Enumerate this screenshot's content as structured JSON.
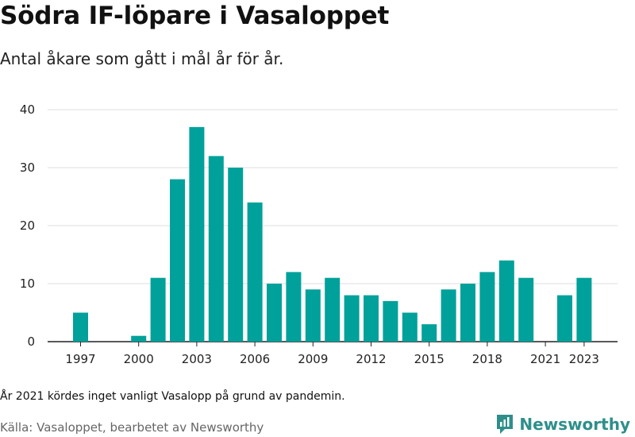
{
  "colors": {
    "bar": "#00a19a",
    "grid": "#dddddd",
    "axis": "#222222",
    "brand": "#2e8f8a"
  },
  "header": {
    "title": "Södra IF-löpare i Vasaloppet",
    "subtitle": "Antal åkare som gått i mål år för år."
  },
  "footer": {
    "note": "År 2021 kördes inget vanligt Vasalopp på grund av pandemin.",
    "source": "Källa: Vasaloppet, bearbetet av Newsworthy",
    "brand_name": "Newsworthy",
    "brand_icon": "newsworthy-logo-icon"
  },
  "chart_data": {
    "type": "bar",
    "title": "Södra IF-löpare i Vasaloppet",
    "subtitle": "Antal åkare som gått i mål år för år.",
    "xlabel": "",
    "ylabel": "",
    "categories": [
      "1997",
      "1998",
      "1999",
      "2000",
      "2001",
      "2002",
      "2003",
      "2004",
      "2005",
      "2006",
      "2007",
      "2008",
      "2009",
      "2010",
      "2011",
      "2012",
      "2013",
      "2014",
      "2015",
      "2016",
      "2017",
      "2018",
      "2019",
      "2020",
      "2021",
      "2022",
      "2023"
    ],
    "values": [
      5,
      0,
      0,
      1,
      11,
      28,
      37,
      32,
      30,
      24,
      10,
      12,
      9,
      11,
      8,
      8,
      7,
      5,
      3,
      9,
      10,
      12,
      14,
      11,
      0,
      8,
      11
    ],
    "ylim": [
      0,
      40
    ],
    "yticks": [
      "0",
      "10",
      "20",
      "30",
      "40"
    ],
    "xticks": [
      "1997",
      "2000",
      "2003",
      "2006",
      "2009",
      "2012",
      "2015",
      "2018",
      "2021",
      "2023"
    ],
    "grid": true,
    "legend": "none"
  }
}
